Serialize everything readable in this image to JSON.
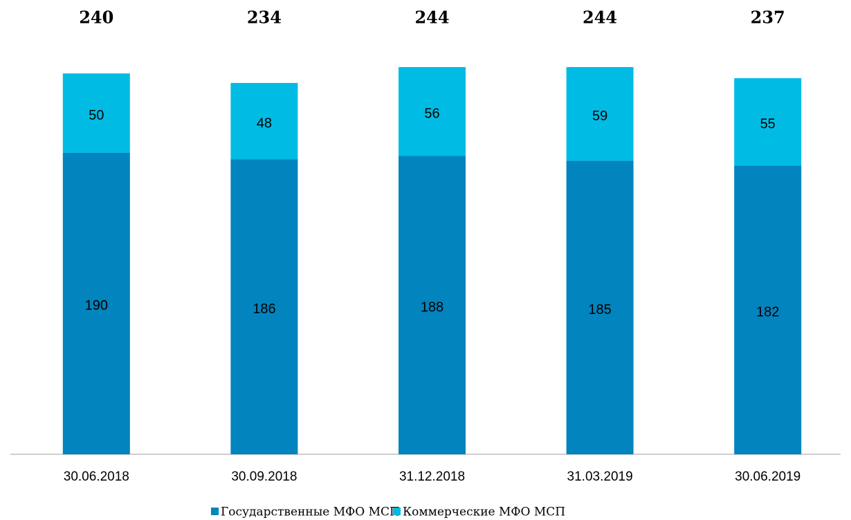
{
  "chart_data": {
    "type": "stacked_bar",
    "categories": [
      "30.06.2018",
      "30.09.2018",
      "31.12.2018",
      "31.03.2019",
      "30.06.2019"
    ],
    "series": [
      {
        "name": "Государственные МФО МСП",
        "color": "#0284be",
        "values": [
          190,
          186,
          188,
          185,
          182
        ]
      },
      {
        "name": "Коммерческие МФО МСП",
        "color": "#00bce4",
        "values": [
          50,
          48,
          56,
          59,
          55
        ]
      }
    ],
    "totals": [
      240,
      234,
      244,
      244,
      237
    ],
    "legend": "bottom"
  }
}
